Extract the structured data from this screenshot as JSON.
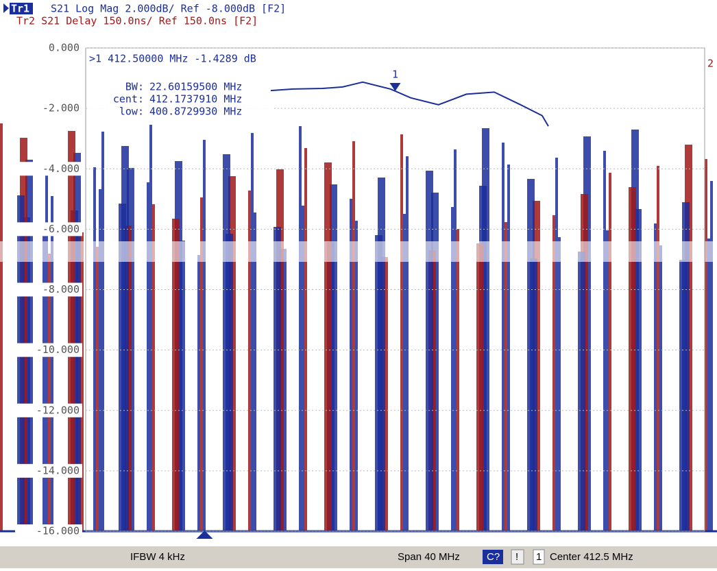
{
  "header": {
    "trace1_tag": "Tr1",
    "trace1": "S21 Log Mag 2.000dB/ Ref -8.000dB [F2]",
    "trace2": "Tr2 S21 Delay 150.0ns/ Ref 150.0ns [F2]"
  },
  "chart_data": {
    "type": "line",
    "x": [
      404.46,
      405.9,
      407.8,
      409.1,
      410.4,
      412.2,
      413.5,
      415.3,
      417.1,
      418.9,
      420.6,
      422.0,
      422.4
    ],
    "series": [
      {
        "name": "Tr1",
        "color": "#1a2e9c",
        "values": [
          -1.41,
          -1.36,
          -1.34,
          -1.29,
          -1.13,
          -1.36,
          -1.65,
          -1.88,
          -1.53,
          -1.46,
          -1.88,
          -2.24,
          -2.59
        ]
      }
    ],
    "xlim": [
      392.5,
      432.5
    ],
    "ylim": [
      -16,
      0
    ],
    "yticks": [
      {
        "value": 0,
        "label": "0.000"
      },
      {
        "value": -2,
        "label": "-2.000"
      },
      {
        "value": -4,
        "label": "-4.000"
      },
      {
        "value": -6,
        "label": "-6.000"
      },
      {
        "value": -8,
        "label": "-8.000"
      },
      {
        "value": -10,
        "label": "-10.000"
      },
      {
        "value": -12,
        "label": "-12.000"
      },
      {
        "value": -14,
        "label": "-14.000"
      },
      {
        "value": -16,
        "label": "-16.000"
      }
    ],
    "marker": {
      "number": "1",
      "x": 412.5,
      "value": -1.4289,
      "readout": ">1  412.50000 MHz -1.4289 dB"
    },
    "trace2_label": "2",
    "stats": [
      {
        "label": "BW:",
        "value": "22.60159500 MHz"
      },
      {
        "label": "cent:",
        "value": "412.1737910 MHz"
      },
      {
        "label": "low:",
        "value": "400.8729930 MHz"
      }
    ]
  },
  "status_bar": {
    "ifbw": "IFBW 4 kHz",
    "span": "Span 40 MHz",
    "cal": "C?",
    "warn": "!",
    "channel": "1",
    "center": "Center 412.5 MHz"
  }
}
